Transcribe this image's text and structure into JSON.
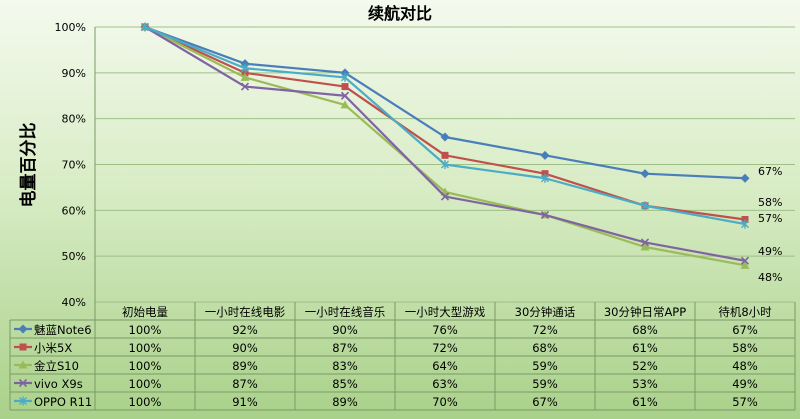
{
  "chart_data": {
    "type": "line",
    "title": "续航对比",
    "ylabel": "电量百分比",
    "xlabel": "",
    "ylim": [
      40,
      100
    ],
    "yticks": [
      "40%",
      "50%",
      "60%",
      "70%",
      "80%",
      "90%",
      "100%"
    ],
    "grid": true,
    "legend": "table-left",
    "categories": [
      "初始电量",
      "一小时在线电影",
      "一小时在线音乐",
      "一小时大型游戏",
      "30分钟通话",
      "30分钟日常APP",
      "待机8小时"
    ],
    "series": [
      {
        "name": "魅蓝Note6",
        "color": "#4a7ebb",
        "marker": "diamond",
        "values": [
          100,
          92,
          90,
          76,
          72,
          68,
          67
        ],
        "labels": [
          "100%",
          "92%",
          "90%",
          "76%",
          "72%",
          "68%",
          "67%"
        ]
      },
      {
        "name": "小米5X",
        "color": "#c0504d",
        "marker": "square",
        "values": [
          100,
          90,
          87,
          72,
          68,
          61,
          58
        ],
        "labels": [
          "100%",
          "90%",
          "87%",
          "72%",
          "68%",
          "61%",
          "58%"
        ]
      },
      {
        "name": "金立S10",
        "color": "#9bbb59",
        "marker": "triangle",
        "values": [
          100,
          89,
          83,
          64,
          59,
          52,
          48
        ],
        "labels": [
          "100%",
          "89%",
          "83%",
          "64%",
          "59%",
          "52%",
          "48%"
        ]
      },
      {
        "name": "vivo X9s",
        "color": "#8064a2",
        "marker": "x",
        "values": [
          100,
          87,
          85,
          63,
          59,
          53,
          49
        ],
        "labels": [
          "100%",
          "87%",
          "85%",
          "63%",
          "59%",
          "53%",
          "49%"
        ]
      },
      {
        "name": "OPPO R11",
        "color": "#4bacc6",
        "marker": "star",
        "values": [
          100,
          91,
          89,
          70,
          67,
          61,
          57
        ],
        "labels": [
          "100%",
          "91%",
          "89%",
          "70%",
          "67%",
          "61%",
          "57%"
        ]
      }
    ],
    "end_labels": [
      "67%",
      "58%",
      "57%",
      "49%",
      "48%"
    ]
  }
}
